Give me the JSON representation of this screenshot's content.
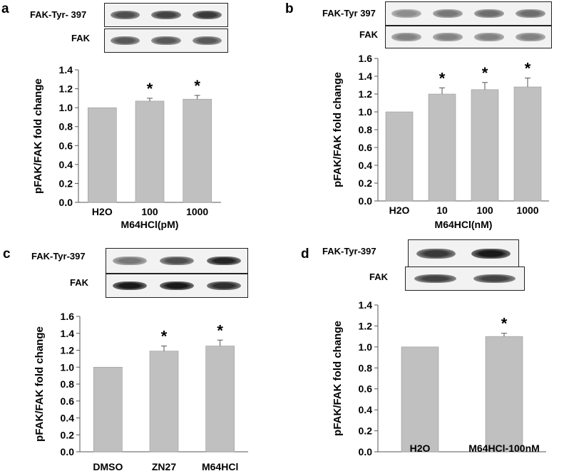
{
  "panels": [
    {
      "letter": "a",
      "blots": [
        {
          "label": "FAK-Tyr- 397",
          "lane_intensity": [
            0.75,
            0.8,
            0.85
          ]
        },
        {
          "label": "FAK",
          "lane_intensity": [
            0.7,
            0.7,
            0.7
          ]
        }
      ],
      "chart_data": {
        "type": "bar",
        "categories": [
          "H2O",
          "100",
          "1000"
        ],
        "values": [
          1.0,
          1.07,
          1.09
        ],
        "errors": [
          0,
          0.03,
          0.04
        ],
        "significance": [
          "",
          "*",
          "*"
        ],
        "title": "",
        "xlabel": "M64HCl(pM)",
        "ylabel": "pFAK/FAK fold change",
        "ylim": [
          0,
          1.4
        ],
        "yticks": [
          "0.0",
          "0.2",
          "0.4",
          "0.6",
          "0.8",
          "1.0",
          "1.2",
          "1.4"
        ],
        "bar_color": "#c0c0c0"
      }
    },
    {
      "letter": "b",
      "blots": [
        {
          "label": "FAK-Tyr 397",
          "lane_intensity": [
            0.45,
            0.55,
            0.6,
            0.6
          ]
        },
        {
          "label": "FAK",
          "lane_intensity": [
            0.5,
            0.5,
            0.5,
            0.5
          ]
        }
      ],
      "chart_data": {
        "type": "bar",
        "categories": [
          "H2O",
          "10",
          "100",
          "1000"
        ],
        "values": [
          1.0,
          1.2,
          1.25,
          1.28
        ],
        "errors": [
          0,
          0.07,
          0.08,
          0.1
        ],
        "significance": [
          "",
          "*",
          "*",
          "*"
        ],
        "title": "",
        "xlabel": "M64HCl(nM)",
        "ylabel": "pFAK/FAK fold change",
        "ylim": [
          0,
          1.6
        ],
        "yticks": [
          "0.0",
          "0.2",
          "0.4",
          "0.6",
          "0.8",
          "1.0",
          "1.2",
          "1.4",
          "1.6"
        ],
        "bar_color": "#c0c0c0"
      }
    },
    {
      "letter": "c",
      "blots": [
        {
          "label": "FAK-Tyr-397",
          "lane_intensity": [
            0.55,
            0.75,
            0.95
          ]
        },
        {
          "label": "FAK",
          "lane_intensity": [
            1.0,
            1.0,
            0.9
          ]
        }
      ],
      "chart_data": {
        "type": "bar",
        "categories": [
          "DMSO",
          "ZN27",
          "M64HCl"
        ],
        "values": [
          1.0,
          1.19,
          1.25
        ],
        "errors": [
          0,
          0.06,
          0.07
        ],
        "significance": [
          "",
          "*",
          "*"
        ],
        "title": "",
        "xlabel": "",
        "ylabel": "pFAK/FAK fold change",
        "ylim": [
          0,
          1.6
        ],
        "yticks": [
          "0.0",
          "0.2",
          "0.4",
          "0.6",
          "0.8",
          "1.0",
          "1.2",
          "1.4",
          "1.6"
        ],
        "bar_color": "#c0c0c0"
      }
    },
    {
      "letter": "d",
      "blots": [
        {
          "label": "FAK-Tyr-397",
          "lane_intensity": [
            0.85,
            1.0
          ]
        },
        {
          "label": "FAK",
          "lane_intensity": [
            0.8,
            0.8
          ]
        }
      ],
      "chart_data": {
        "type": "bar",
        "categories": [
          "H2O",
          "M64HCl-100nM"
        ],
        "values": [
          1.0,
          1.1
        ],
        "errors": [
          0,
          0.03
        ],
        "significance": [
          "",
          "*"
        ],
        "title": "",
        "xlabel": "",
        "ylabel": "pFAK/FAK fold change",
        "ylim": [
          0,
          1.4
        ],
        "yticks": [
          "0.0",
          "0.2",
          "0.4",
          "0.6",
          "0.8",
          "1.0",
          "1.2",
          "1.4"
        ],
        "bar_color": "#c0c0c0"
      }
    }
  ]
}
